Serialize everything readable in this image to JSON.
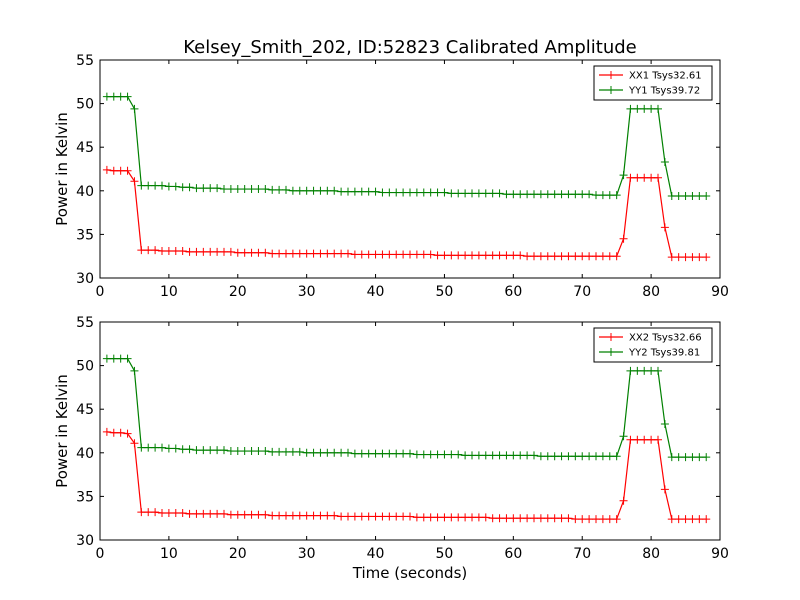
{
  "title": "Kelsey_Smith_202, ID:52823 Calibrated Amplitude",
  "xlabel": "Time (seconds)",
  "chart_data": [
    {
      "type": "line",
      "ylabel": "Power in Kelvin",
      "xlim": [
        0,
        90
      ],
      "ylim": [
        30,
        55
      ],
      "xticks": [
        0,
        10,
        20,
        30,
        40,
        50,
        60,
        70,
        80,
        90
      ],
      "yticks": [
        30,
        35,
        40,
        45,
        50,
        55
      ],
      "legend_position": "top-right",
      "x": [
        1,
        2,
        3,
        4,
        5,
        6,
        7,
        8,
        9,
        10,
        11,
        12,
        13,
        14,
        15,
        16,
        17,
        18,
        19,
        20,
        21,
        22,
        23,
        24,
        25,
        26,
        27,
        28,
        29,
        30,
        31,
        32,
        33,
        34,
        35,
        36,
        37,
        38,
        39,
        40,
        41,
        42,
        43,
        44,
        45,
        46,
        47,
        48,
        49,
        50,
        51,
        52,
        53,
        54,
        55,
        56,
        57,
        58,
        59,
        60,
        61,
        62,
        63,
        64,
        65,
        66,
        67,
        68,
        69,
        70,
        71,
        72,
        73,
        74,
        75,
        76,
        77,
        78,
        79,
        80,
        81,
        82,
        83,
        84,
        85,
        86,
        87,
        88
      ],
      "series": [
        {
          "name": "XX1 Tsys32.61",
          "color": "#ff0000",
          "values": [
            42.4,
            42.3,
            42.3,
            42.3,
            41.1,
            33.2,
            33.2,
            33.2,
            33.1,
            33.1,
            33.1,
            33.1,
            33.0,
            33.0,
            33.0,
            33.0,
            33.0,
            33.0,
            33.0,
            32.9,
            32.9,
            32.9,
            32.9,
            32.9,
            32.8,
            32.8,
            32.8,
            32.8,
            32.8,
            32.8,
            32.8,
            32.8,
            32.8,
            32.8,
            32.8,
            32.8,
            32.7,
            32.7,
            32.7,
            32.7,
            32.7,
            32.7,
            32.7,
            32.7,
            32.7,
            32.7,
            32.7,
            32.7,
            32.6,
            32.6,
            32.6,
            32.6,
            32.6,
            32.6,
            32.6,
            32.6,
            32.6,
            32.6,
            32.6,
            32.6,
            32.6,
            32.5,
            32.5,
            32.5,
            32.5,
            32.5,
            32.5,
            32.5,
            32.5,
            32.5,
            32.5,
            32.5,
            32.5,
            32.5,
            32.5,
            34.5,
            41.5,
            41.5,
            41.5,
            41.5,
            41.5,
            35.8,
            32.4,
            32.4,
            32.4,
            32.4,
            32.4,
            32.4
          ]
        },
        {
          "name": "YY1 Tsys39.72",
          "color": "#008000",
          "values": [
            50.8,
            50.8,
            50.8,
            50.8,
            49.4,
            40.6,
            40.6,
            40.6,
            40.6,
            40.5,
            40.5,
            40.4,
            40.4,
            40.3,
            40.3,
            40.3,
            40.3,
            40.2,
            40.2,
            40.2,
            40.2,
            40.2,
            40.2,
            40.2,
            40.1,
            40.1,
            40.1,
            40.0,
            40.0,
            40.0,
            40.0,
            40.0,
            40.0,
            40.0,
            39.9,
            39.9,
            39.9,
            39.9,
            39.9,
            39.9,
            39.8,
            39.8,
            39.8,
            39.8,
            39.8,
            39.8,
            39.8,
            39.8,
            39.8,
            39.8,
            39.7,
            39.7,
            39.7,
            39.7,
            39.7,
            39.7,
            39.7,
            39.7,
            39.6,
            39.6,
            39.6,
            39.6,
            39.6,
            39.6,
            39.6,
            39.6,
            39.6,
            39.6,
            39.6,
            39.6,
            39.6,
            39.5,
            39.5,
            39.5,
            39.5,
            41.8,
            49.4,
            49.4,
            49.4,
            49.4,
            49.4,
            43.3,
            39.4,
            39.4,
            39.4,
            39.4,
            39.4,
            39.4
          ]
        }
      ]
    },
    {
      "type": "line",
      "ylabel": "Power in Kelvin",
      "xlim": [
        0,
        90
      ],
      "ylim": [
        30,
        55
      ],
      "xticks": [
        0,
        10,
        20,
        30,
        40,
        50,
        60,
        70,
        80,
        90
      ],
      "yticks": [
        30,
        35,
        40,
        45,
        50,
        55
      ],
      "legend_position": "top-right",
      "x": [
        1,
        2,
        3,
        4,
        5,
        6,
        7,
        8,
        9,
        10,
        11,
        12,
        13,
        14,
        15,
        16,
        17,
        18,
        19,
        20,
        21,
        22,
        23,
        24,
        25,
        26,
        27,
        28,
        29,
        30,
        31,
        32,
        33,
        34,
        35,
        36,
        37,
        38,
        39,
        40,
        41,
        42,
        43,
        44,
        45,
        46,
        47,
        48,
        49,
        50,
        51,
        52,
        53,
        54,
        55,
        56,
        57,
        58,
        59,
        60,
        61,
        62,
        63,
        64,
        65,
        66,
        67,
        68,
        69,
        70,
        71,
        72,
        73,
        74,
        75,
        76,
        77,
        78,
        79,
        80,
        81,
        82,
        83,
        84,
        85,
        86,
        87,
        88
      ],
      "series": [
        {
          "name": "XX2 Tsys32.66",
          "color": "#ff0000",
          "values": [
            42.4,
            42.3,
            42.3,
            42.2,
            41.1,
            33.2,
            33.2,
            33.2,
            33.1,
            33.1,
            33.1,
            33.1,
            33.0,
            33.0,
            33.0,
            33.0,
            33.0,
            33.0,
            32.9,
            32.9,
            32.9,
            32.9,
            32.9,
            32.9,
            32.8,
            32.8,
            32.8,
            32.8,
            32.8,
            32.8,
            32.8,
            32.8,
            32.8,
            32.8,
            32.7,
            32.7,
            32.7,
            32.7,
            32.7,
            32.7,
            32.7,
            32.7,
            32.7,
            32.7,
            32.7,
            32.6,
            32.6,
            32.6,
            32.6,
            32.6,
            32.6,
            32.6,
            32.6,
            32.6,
            32.6,
            32.6,
            32.5,
            32.5,
            32.5,
            32.5,
            32.5,
            32.5,
            32.5,
            32.5,
            32.5,
            32.5,
            32.5,
            32.5,
            32.4,
            32.4,
            32.4,
            32.4,
            32.4,
            32.4,
            32.4,
            34.5,
            41.5,
            41.5,
            41.5,
            41.5,
            41.5,
            35.8,
            32.4,
            32.4,
            32.4,
            32.4,
            32.4,
            32.4
          ]
        },
        {
          "name": "YY2 Tsys39.81",
          "color": "#008000",
          "values": [
            50.8,
            50.8,
            50.8,
            50.8,
            49.4,
            40.6,
            40.6,
            40.6,
            40.6,
            40.5,
            40.5,
            40.4,
            40.4,
            40.3,
            40.3,
            40.3,
            40.3,
            40.3,
            40.2,
            40.2,
            40.2,
            40.2,
            40.2,
            40.2,
            40.1,
            40.1,
            40.1,
            40.1,
            40.1,
            40.0,
            40.0,
            40.0,
            40.0,
            40.0,
            40.0,
            40.0,
            39.9,
            39.9,
            39.9,
            39.9,
            39.9,
            39.9,
            39.9,
            39.9,
            39.9,
            39.8,
            39.8,
            39.8,
            39.8,
            39.8,
            39.8,
            39.8,
            39.7,
            39.7,
            39.7,
            39.7,
            39.7,
            39.7,
            39.7,
            39.7,
            39.7,
            39.7,
            39.7,
            39.6,
            39.6,
            39.6,
            39.6,
            39.6,
            39.6,
            39.6,
            39.6,
            39.6,
            39.6,
            39.6,
            39.6,
            41.9,
            49.4,
            49.4,
            49.4,
            49.4,
            49.4,
            43.3,
            39.5,
            39.5,
            39.5,
            39.5,
            39.5,
            39.5
          ]
        }
      ]
    }
  ]
}
